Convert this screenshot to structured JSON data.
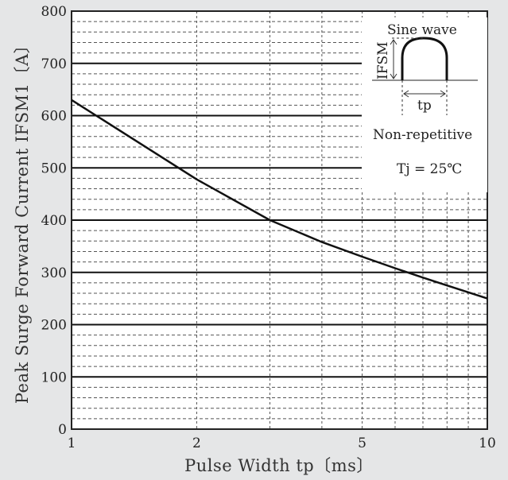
{
  "chart_data": {
    "type": "line",
    "title": "",
    "xlabel": "Pulse Width  tp〔ms〕",
    "ylabel": "Peak Surge Forward Current  IFSM1〔A〕",
    "xscale": "log",
    "xlim": [
      1,
      10
    ],
    "ylim": [
      0,
      800
    ],
    "grid": true,
    "x_ticks": [
      "1",
      "2",
      "5",
      "10"
    ],
    "y_ticks": [
      "0",
      "100",
      "200",
      "300",
      "400",
      "500",
      "600",
      "700",
      "800"
    ],
    "series": [
      {
        "name": "",
        "x": [
          1,
          2,
          3,
          4,
          5,
          6,
          7,
          8,
          10
        ],
        "y": [
          630,
          478,
          400,
          358,
          330,
          308,
          290,
          275,
          250
        ]
      }
    ],
    "annotations": {
      "waveform_label": "Sine wave",
      "waveform_ylabel": "IFSM",
      "waveform_xlabel": "tp",
      "condition_1": "Non-repetitive",
      "condition_2": "Tj = 25℃"
    }
  }
}
